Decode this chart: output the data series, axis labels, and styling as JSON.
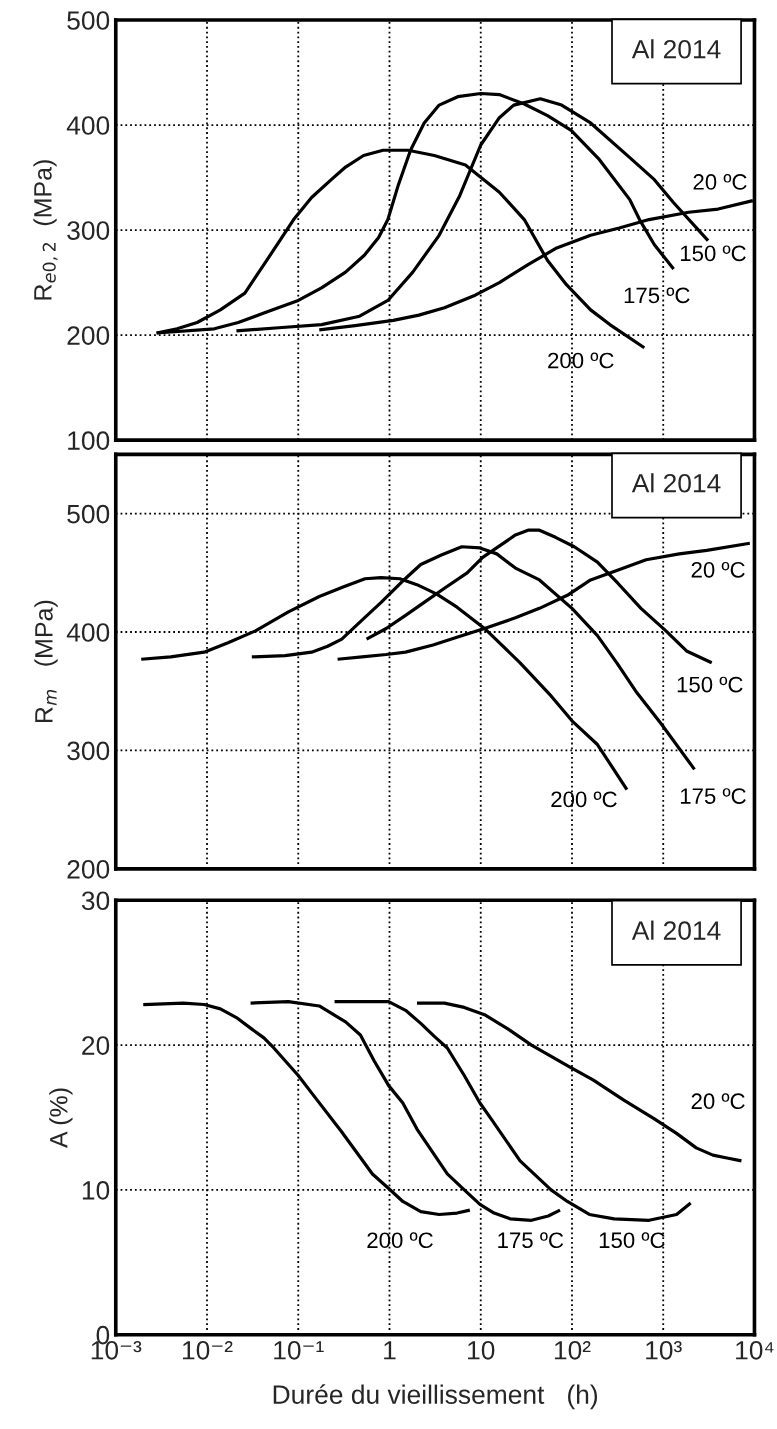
{
  "chart_data": [
    {
      "type": "line",
      "ylabel": "R$_{e0,2}$  (MPa)",
      "log": "x",
      "xlim": [
        0.001,
        10000
      ],
      "ylim": [
        100,
        500
      ],
      "xticks": [
        {
          "value": 0.001,
          "label": null
        },
        {
          "value": 0.01,
          "label": null
        },
        {
          "value": 0.1,
          "label": null
        },
        {
          "value": 1,
          "label": null
        },
        {
          "value": 10,
          "label": null
        },
        {
          "value": 100,
          "label": null
        },
        {
          "value": 1000,
          "label": null
        },
        {
          "value": 10000,
          "label": null
        }
      ],
      "yticks": [
        100,
        200,
        300,
        400,
        500
      ],
      "grid": true,
      "tick_labels": "y",
      "series": [
        {
          "name": "200 ºC",
          "color": "#000000",
          "x": [
            0.0028,
            0.0047,
            0.0078,
            0.014,
            0.026,
            0.042,
            0.089,
            0.14,
            0.23,
            0.33,
            0.52,
            0.85,
            1.6,
            3.1,
            6.8,
            16,
            30,
            54,
            87,
            160,
            260,
            620
          ],
          "values": [
            202,
            206,
            212,
            224,
            240,
            267,
            310,
            331,
            348,
            360,
            371,
            376,
            376,
            371,
            362,
            336,
            310,
            271,
            248,
            224,
            210,
            188
          ]
        },
        {
          "name": "175 ºC",
          "color": "#000000",
          "x": [
            0.0028,
            0.012,
            0.022,
            0.042,
            0.1,
            0.18,
            0.33,
            0.53,
            0.76,
            0.96,
            1.25,
            1.7,
            2.4,
            3.5,
            5.6,
            10,
            16,
            30,
            54,
            98,
            200,
            430,
            550,
            800,
            1300
          ],
          "values": [
            202,
            206,
            212,
            221,
            233,
            245,
            260,
            276,
            293,
            310,
            343,
            376,
            402,
            419,
            427,
            430,
            429,
            420,
            409,
            395,
            367,
            329,
            310,
            286,
            263
          ]
        },
        {
          "name": "150 ºC",
          "color": "#000000",
          "x": [
            0.021,
            0.061,
            0.18,
            0.47,
            0.96,
            1.8,
            3.5,
            5.9,
            10,
            16,
            23,
            45,
            77,
            160,
            430,
            800,
            1300,
            3100
          ],
          "values": [
            204,
            207,
            210,
            218,
            233,
            260,
            295,
            333,
            381,
            407,
            419,
            425,
            419,
            402,
            369,
            348,
            326,
            290
          ]
        },
        {
          "name": "20 ºC",
          "color": "#000000",
          "x": [
            0.17,
            0.42,
            1.1,
            2.1,
            4,
            8.7,
            16,
            33,
            68,
            160,
            330,
            700,
            1900,
            4000,
            9600
          ],
          "values": [
            205,
            209,
            214,
            219,
            226,
            238,
            250,
            267,
            283,
            295,
            302,
            310,
            317,
            320,
            328
          ]
        }
      ],
      "annotations": [
        "Al 2014"
      ]
    },
    {
      "type": "line",
      "ylabel": "R$_{m}$   (MPa)",
      "log": "x",
      "xlim": [
        0.001,
        10000
      ],
      "ylim": [
        200,
        550
      ],
      "xticks": [
        {
          "value": 0.001,
          "label": null
        },
        {
          "value": 0.01,
          "label": null
        },
        {
          "value": 0.1,
          "label": null
        },
        {
          "value": 1,
          "label": null
        },
        {
          "value": 10,
          "label": null
        },
        {
          "value": 100,
          "label": null
        },
        {
          "value": 1000,
          "label": null
        },
        {
          "value": 10000,
          "label": null
        }
      ],
      "yticks": [
        200,
        300,
        400,
        500
      ],
      "grid": true,
      "tick_labels": "y",
      "series": [
        {
          "name": "200 ºC",
          "color": "#000000",
          "x": [
            0.0019,
            0.004,
            0.0093,
            0.017,
            0.034,
            0.078,
            0.17,
            0.31,
            0.54,
            0.81,
            1.3,
            2,
            3.3,
            5.5,
            11,
            27,
            59,
            100,
            190,
            400
          ],
          "values": [
            377,
            379,
            383,
            391,
            401,
            417,
            430,
            438,
            445,
            446,
            445,
            440,
            432,
            421,
            403,
            374,
            346,
            325,
            305,
            267
          ]
        },
        {
          "name": "175 ºC",
          "color": "#000000",
          "x": [
            0.031,
            0.072,
            0.14,
            0.21,
            0.3,
            0.5,
            0.81,
            1.35,
            2.2,
            3.7,
            6.2,
            9.8,
            15,
            24,
            44,
            100,
            190,
            310,
            500,
            940,
            2200
          ],
          "values": [
            379,
            380,
            383,
            388,
            394,
            410,
            425,
            442,
            457,
            465,
            472,
            471,
            466,
            454,
            444,
            420,
            397,
            374,
            350,
            323,
            284
          ]
        },
        {
          "name": "150 ºC",
          "color": "#000000",
          "x": [
            0.56,
            0.92,
            1.5,
            2.4,
            4,
            7.1,
            10.5,
            17,
            24,
            33,
            44,
            66,
            106,
            190,
            320,
            570,
            1070,
            1800,
            3400
          ],
          "values": [
            394,
            403,
            414,
            425,
            437,
            450,
            463,
            474,
            482,
            486,
            486,
            480,
            472,
            459,
            441,
            420,
            401,
            384,
            374
          ]
        },
        {
          "name": "20 ºC",
          "color": "#000000",
          "x": [
            0.27,
            0.5,
            0.92,
            1.5,
            3,
            5.7,
            11,
            24,
            44,
            89,
            160,
            310,
            650,
            1500,
            3000,
            8900
          ],
          "values": [
            377,
            379,
            381,
            383,
            389,
            396,
            403,
            412,
            420,
            431,
            444,
            452,
            461,
            466,
            469,
            475
          ]
        }
      ],
      "annotations": [
        "Al 2014"
      ]
    },
    {
      "type": "line",
      "ylabel": "A (%)",
      "xlabel": "Durée du vieillissement   (h)",
      "log": "x",
      "xlim": [
        0.001,
        10000
      ],
      "ylim": [
        0,
        30
      ],
      "xticks": [
        {
          "value": 0.001,
          "label": "10⁻³"
        },
        {
          "value": 0.01,
          "label": "10⁻²"
        },
        {
          "value": 0.1,
          "label": "10⁻¹"
        },
        1,
        10,
        {
          "value": 100,
          "label": "10²"
        },
        {
          "value": 1000,
          "label": "10³"
        },
        {
          "value": 10000,
          "label": "10⁴"
        }
      ],
      "yticks": [
        0,
        10,
        20,
        30
      ],
      "grid": true,
      "series": [
        {
          "name": "200 ºC",
          "color": "#000000",
          "x": [
            0.002,
            0.0055,
            0.0093,
            0.014,
            0.021,
            0.031,
            0.042,
            0.054,
            0.1,
            0.14,
            0.3,
            0.65,
            0.98,
            1.4,
            2.2,
            3.5,
            5.5,
            7.6
          ],
          "values": [
            22.8,
            22.9,
            22.8,
            22.5,
            21.9,
            21.1,
            20.5,
            19.8,
            17.9,
            16.7,
            14.0,
            11.1,
            10.1,
            9.2,
            8.5,
            8.3,
            8.4,
            8.6
          ]
        },
        {
          "name": "175 ºC",
          "color": "#000000",
          "x": [
            0.03,
            0.078,
            0.17,
            0.33,
            0.48,
            0.68,
            0.98,
            1.4,
            2,
            4.3,
            6.6,
            9.8,
            14,
            21,
            36,
            55,
            74
          ],
          "values": [
            22.9,
            23.0,
            22.7,
            21.6,
            20.7,
            18.9,
            17.2,
            16.0,
            14.2,
            11.1,
            10.0,
            9.0,
            8.4,
            8.0,
            7.9,
            8.2,
            8.6
          ]
        },
        {
          "name": "150 ºC",
          "color": "#000000",
          "x": [
            0.25,
            0.98,
            1.5,
            2.2,
            3.1,
            4.3,
            6.6,
            9.8,
            13,
            27,
            59,
            89,
            155,
            290,
            700,
            1400,
            2000
          ],
          "values": [
            23.0,
            23.0,
            22.4,
            21.5,
            20.6,
            19.8,
            17.9,
            16.0,
            14.9,
            12.0,
            10.0,
            9.2,
            8.3,
            8.0,
            7.9,
            8.3,
            9.1
          ]
        },
        {
          "name": "20 ºC",
          "color": "#000000",
          "x": [
            2,
            4,
            6.6,
            11,
            20,
            36,
            94,
            170,
            370,
            800,
            1400,
            2300,
            3500,
            5000,
            7200
          ],
          "values": [
            22.9,
            22.9,
            22.6,
            22.1,
            21.1,
            20.0,
            18.5,
            17.6,
            16.2,
            14.9,
            13.9,
            12.9,
            12.4,
            12.2,
            12.0
          ]
        }
      ],
      "annotations": [
        "Al 2014"
      ]
    }
  ]
}
